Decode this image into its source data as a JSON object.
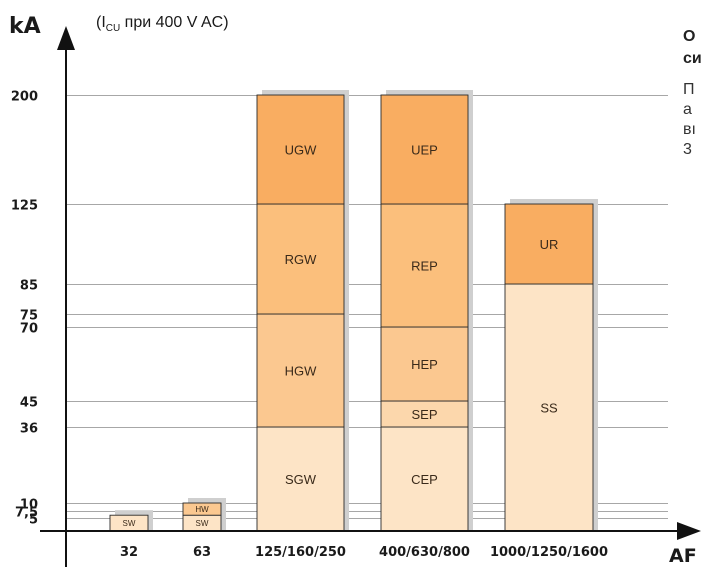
{
  "chart_data": {
    "type": "bar",
    "stacked": true,
    "ylabel": "kA",
    "xlabel": "AF",
    "subtitle": {
      "prefix": "(I",
      "sub": "CU",
      "suffix": " при 400 V AC)"
    },
    "y_ticks": [
      "5",
      "7,5",
      "10",
      "36",
      "45",
      "70",
      "75",
      "85",
      "125",
      "200"
    ],
    "y_tick_values": [
      5,
      7.5,
      10,
      36,
      45,
      70,
      75,
      85,
      125,
      200
    ],
    "ylim": [
      0,
      212
    ],
    "grid": true,
    "categories": [
      "32",
      "63",
      "125/160/250",
      "400/630/800",
      "1000/1250/1600"
    ],
    "stacks": [
      {
        "category": "32",
        "segments": [
          {
            "label": "SW",
            "from": 0,
            "to": 6,
            "color": "#fde4c6"
          }
        ]
      },
      {
        "category": "63",
        "segments": [
          {
            "label": "SW",
            "from": 0,
            "to": 6,
            "color": "#fde4c6"
          },
          {
            "label": "HW",
            "from": 6,
            "to": 10,
            "color": "#fbc890"
          }
        ]
      },
      {
        "category": "125/160/250",
        "segments": [
          {
            "label": "SGW",
            "from": 0,
            "to": 36,
            "color": "#fde4c6"
          },
          {
            "label": "HGW",
            "from": 36,
            "to": 75,
            "color": "#fbc890"
          },
          {
            "label": "RGW",
            "from": 75,
            "to": 125,
            "color": "#fbbf7c"
          },
          {
            "label": "UGW",
            "from": 125,
            "to": 200,
            "color": "#f9ad61"
          }
        ]
      },
      {
        "category": "400/630/800",
        "segments": [
          {
            "label": "CEP",
            "from": 0,
            "to": 36,
            "color": "#fde4c6"
          },
          {
            "label": "SEP",
            "from": 36,
            "to": 45,
            "color": "#fcd7ac"
          },
          {
            "label": "HEP",
            "from": 45,
            "to": 70,
            "color": "#fbc890"
          },
          {
            "label": "REP",
            "from": 70,
            "to": 125,
            "color": "#fbbf7c"
          },
          {
            "label": "UEP",
            "from": 125,
            "to": 200,
            "color": "#f9ad61"
          }
        ]
      },
      {
        "category": "1000/1250/1600",
        "segments": [
          {
            "label": "SS",
            "from": 0,
            "to": 85,
            "color": "#fde4c6"
          },
          {
            "label": "UR",
            "from": 85,
            "to": 125,
            "color": "#f9ad61"
          }
        ]
      }
    ]
  },
  "side_panel": {
    "title": "О\nси",
    "text": "П\nа\nвı\n3"
  }
}
